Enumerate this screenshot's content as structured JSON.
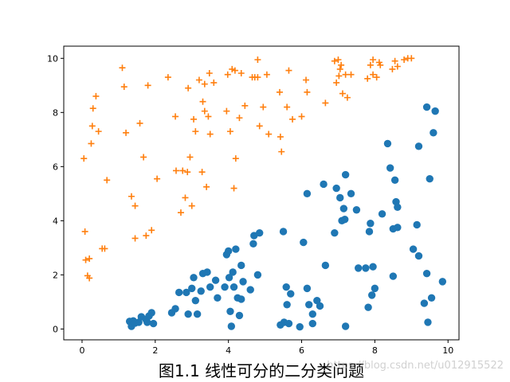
{
  "caption": "图1.1 线性可分的二分类问题",
  "watermark": "https://blog.csdn.net/u012915522",
  "colors": {
    "series_plus": "#ff7f0e",
    "series_dot": "#1f77b4",
    "axis": "#000000",
    "background": "#ffffff"
  },
  "chart_data": {
    "type": "scatter",
    "title": "",
    "xlabel": "",
    "ylabel": "",
    "xlim": [
      -0.5,
      10.3
    ],
    "ylim": [
      -0.4,
      10.45
    ],
    "xticks": [
      0,
      2,
      4,
      6,
      8,
      10
    ],
    "yticks": [
      0,
      2,
      4,
      6,
      8,
      10
    ],
    "grid": false,
    "legend": "none",
    "series": [
      {
        "marker": "plus",
        "color": "#ff7f0e",
        "points": [
          [
            0.05,
            6.3
          ],
          [
            0.08,
            3.6
          ],
          [
            0.1,
            2.55
          ],
          [
            0.15,
            1.97
          ],
          [
            0.2,
            2.6
          ],
          [
            0.2,
            1.88
          ],
          [
            0.25,
            6.85
          ],
          [
            0.28,
            7.5
          ],
          [
            0.3,
            8.15
          ],
          [
            0.38,
            8.6
          ],
          [
            0.45,
            7.3
          ],
          [
            0.55,
            2.97
          ],
          [
            0.62,
            2.97
          ],
          [
            0.68,
            5.5
          ],
          [
            1.1,
            9.65
          ],
          [
            1.15,
            8.95
          ],
          [
            1.2,
            7.25
          ],
          [
            1.35,
            4.9
          ],
          [
            1.45,
            4.55
          ],
          [
            1.45,
            3.35
          ],
          [
            1.58,
            7.6
          ],
          [
            1.68,
            6.35
          ],
          [
            1.75,
            3.45
          ],
          [
            1.8,
            9.0
          ],
          [
            1.9,
            3.65
          ],
          [
            2.05,
            5.55
          ],
          [
            2.35,
            9.3
          ],
          [
            2.55,
            7.85
          ],
          [
            2.57,
            5.85
          ],
          [
            2.7,
            4.3
          ],
          [
            2.75,
            5.85
          ],
          [
            2.82,
            4.85
          ],
          [
            2.88,
            5.8
          ],
          [
            2.9,
            8.9
          ],
          [
            2.95,
            6.35
          ],
          [
            3.0,
            4.55
          ],
          [
            3.05,
            7.75
          ],
          [
            3.1,
            7.3
          ],
          [
            3.2,
            9.2
          ],
          [
            3.28,
            5.8
          ],
          [
            3.3,
            8.4
          ],
          [
            3.35,
            9.05
          ],
          [
            3.35,
            8.05
          ],
          [
            3.4,
            5.25
          ],
          [
            3.45,
            7.85
          ],
          [
            3.5,
            7.2
          ],
          [
            3.48,
            9.45
          ],
          [
            3.6,
            9.1
          ],
          [
            3.95,
            8.05
          ],
          [
            3.98,
            9.4
          ],
          [
            4.05,
            7.3
          ],
          [
            4.1,
            9.6
          ],
          [
            4.15,
            5.2
          ],
          [
            4.18,
            9.55
          ],
          [
            4.2,
            6.3
          ],
          [
            4.3,
            7.8
          ],
          [
            4.35,
            9.45
          ],
          [
            4.45,
            8.25
          ],
          [
            4.65,
            9.3
          ],
          [
            4.72,
            9.3
          ],
          [
            4.8,
            9.95
          ],
          [
            4.8,
            9.3
          ],
          [
            4.85,
            7.5
          ],
          [
            4.95,
            8.2
          ],
          [
            5.05,
            9.4
          ],
          [
            5.1,
            7.2
          ],
          [
            5.4,
            8.75
          ],
          [
            5.42,
            7.1
          ],
          [
            5.45,
            6.55
          ],
          [
            5.6,
            8.2
          ],
          [
            5.65,
            9.55
          ],
          [
            5.75,
            7.75
          ],
          [
            6.0,
            7.85
          ],
          [
            6.12,
            9.2
          ],
          [
            6.15,
            8.75
          ],
          [
            6.65,
            8.35
          ],
          [
            6.9,
            9.9
          ],
          [
            6.95,
            9.1
          ],
          [
            7.0,
            9.95
          ],
          [
            7.02,
            9.35
          ],
          [
            7.05,
            9.6
          ],
          [
            7.08,
            9.75
          ],
          [
            7.12,
            8.7
          ],
          [
            7.2,
            9.4
          ],
          [
            7.25,
            8.55
          ],
          [
            7.35,
            9.4
          ],
          [
            7.8,
            9.25
          ],
          [
            7.88,
            9.75
          ],
          [
            7.95,
            9.95
          ],
          [
            7.95,
            9.4
          ],
          [
            8.05,
            9.3
          ],
          [
            8.12,
            9.85
          ],
          [
            8.15,
            9.75
          ],
          [
            8.48,
            9.6
          ],
          [
            8.55,
            9.9
          ],
          [
            8.62,
            9.7
          ],
          [
            8.8,
            9.95
          ],
          [
            8.9,
            10.0
          ],
          [
            9.0,
            10.0
          ]
        ]
      },
      {
        "marker": "circle",
        "color": "#1f77b4",
        "points": [
          [
            1.3,
            0.28
          ],
          [
            1.35,
            0.1
          ],
          [
            1.4,
            0.3
          ],
          [
            1.45,
            0.22
          ],
          [
            1.55,
            0.25
          ],
          [
            1.62,
            0.45
          ],
          [
            1.75,
            0.35
          ],
          [
            1.78,
            0.25
          ],
          [
            1.83,
            0.48
          ],
          [
            1.9,
            0.6
          ],
          [
            1.95,
            0.2
          ],
          [
            2.45,
            0.6
          ],
          [
            2.55,
            0.75
          ],
          [
            2.65,
            1.35
          ],
          [
            2.85,
            1.35
          ],
          [
            2.9,
            0.55
          ],
          [
            3.0,
            1.5
          ],
          [
            3.05,
            1.9
          ],
          [
            3.1,
            1.05
          ],
          [
            3.15,
            0.55
          ],
          [
            3.25,
            1.4
          ],
          [
            3.3,
            2.05
          ],
          [
            3.42,
            2.1
          ],
          [
            3.5,
            1.55
          ],
          [
            3.65,
            1.8
          ],
          [
            3.7,
            1.15
          ],
          [
            3.9,
            1.55
          ],
          [
            3.95,
            2.75
          ],
          [
            4.0,
            2.88
          ],
          [
            4.02,
            1.9
          ],
          [
            4.05,
            0.65
          ],
          [
            4.08,
            0.1
          ],
          [
            4.12,
            2.1
          ],
          [
            4.15,
            1.55
          ],
          [
            4.2,
            2.95
          ],
          [
            4.25,
            1.15
          ],
          [
            4.3,
            0.5
          ],
          [
            4.35,
            1.1
          ],
          [
            4.35,
            2.35
          ],
          [
            4.4,
            1.75
          ],
          [
            4.6,
            1.45
          ],
          [
            4.68,
            3.15
          ],
          [
            4.7,
            3.45
          ],
          [
            4.8,
            2.0
          ],
          [
            4.85,
            3.55
          ],
          [
            5.42,
            0.15
          ],
          [
            5.5,
            3.6
          ],
          [
            5.52,
            0.25
          ],
          [
            5.58,
            1.55
          ],
          [
            5.6,
            0.9
          ],
          [
            5.65,
            0.2
          ],
          [
            5.7,
            1.3
          ],
          [
            5.95,
            0.08
          ],
          [
            6.05,
            3.2
          ],
          [
            6.15,
            5.0
          ],
          [
            6.15,
            1.5
          ],
          [
            6.2,
            0.9
          ],
          [
            6.3,
            0.55
          ],
          [
            6.3,
            0.2
          ],
          [
            6.42,
            1.05
          ],
          [
            6.5,
            0.85
          ],
          [
            6.6,
            5.35
          ],
          [
            6.65,
            2.35
          ],
          [
            6.9,
            3.55
          ],
          [
            6.95,
            5.2
          ],
          [
            7.05,
            4.85
          ],
          [
            7.1,
            4.0
          ],
          [
            7.15,
            4.45
          ],
          [
            7.18,
            4.05
          ],
          [
            7.2,
            0.1
          ],
          [
            7.2,
            5.7
          ],
          [
            7.35,
            5.0
          ],
          [
            7.5,
            4.4
          ],
          [
            7.55,
            2.25
          ],
          [
            7.75,
            2.25
          ],
          [
            7.82,
            0.8
          ],
          [
            7.85,
            3.6
          ],
          [
            7.88,
            3.9
          ],
          [
            7.92,
            1.25
          ],
          [
            7.95,
            2.3
          ],
          [
            8.0,
            1.5
          ],
          [
            8.2,
            4.25
          ],
          [
            8.35,
            6.85
          ],
          [
            8.42,
            5.95
          ],
          [
            8.5,
            3.7
          ],
          [
            8.5,
            1.95
          ],
          [
            8.55,
            5.5
          ],
          [
            8.58,
            4.7
          ],
          [
            8.62,
            4.5
          ],
          [
            8.62,
            3.75
          ],
          [
            9.05,
            2.95
          ],
          [
            9.15,
            3.85
          ],
          [
            9.2,
            6.75
          ],
          [
            9.2,
            2.7
          ],
          [
            9.35,
            0.95
          ],
          [
            9.42,
            2.05
          ],
          [
            9.42,
            8.2
          ],
          [
            9.45,
            0.25
          ],
          [
            9.5,
            5.55
          ],
          [
            9.6,
            7.25
          ],
          [
            9.55,
            1.15
          ],
          [
            9.65,
            8.05
          ],
          [
            9.85,
            1.75
          ]
        ]
      }
    ]
  }
}
